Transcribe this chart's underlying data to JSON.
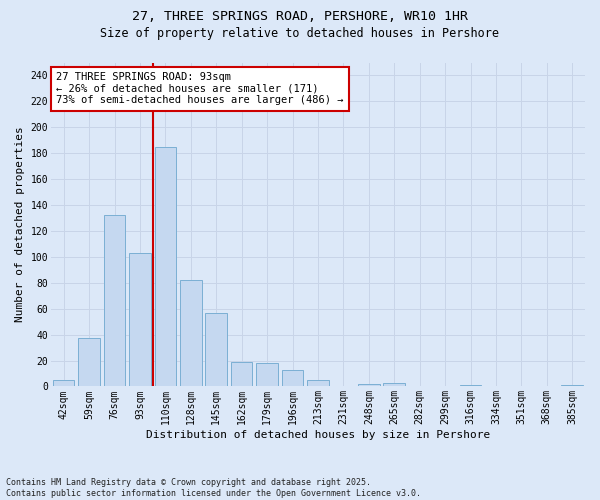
{
  "title_line1": "27, THREE SPRINGS ROAD, PERSHORE, WR10 1HR",
  "title_line2": "Size of property relative to detached houses in Pershore",
  "xlabel": "Distribution of detached houses by size in Pershore",
  "ylabel": "Number of detached properties",
  "categories": [
    "42sqm",
    "59sqm",
    "76sqm",
    "93sqm",
    "110sqm",
    "128sqm",
    "145sqm",
    "162sqm",
    "179sqm",
    "196sqm",
    "213sqm",
    "231sqm",
    "248sqm",
    "265sqm",
    "282sqm",
    "299sqm",
    "316sqm",
    "334sqm",
    "351sqm",
    "368sqm",
    "385sqm"
  ],
  "values": [
    5,
    37,
    132,
    103,
    185,
    82,
    57,
    19,
    18,
    13,
    5,
    0,
    2,
    3,
    0,
    0,
    1,
    0,
    0,
    0,
    1
  ],
  "bar_color": "#c5d8f0",
  "bar_edge_color": "#7bafd4",
  "vline_index": 3,
  "vline_color": "#cc0000",
  "annotation_text": "27 THREE SPRINGS ROAD: 93sqm\n← 26% of detached houses are smaller (171)\n73% of semi-detached houses are larger (486) →",
  "annotation_box_color": "#ffffff",
  "annotation_box_edge": "#cc0000",
  "annotation_fontsize": 7.5,
  "grid_color": "#c8d4e8",
  "background_color": "#dce8f8",
  "plot_bg_color": "#dce8f8",
  "ylim": [
    0,
    250
  ],
  "yticks": [
    0,
    20,
    40,
    60,
    80,
    100,
    120,
    140,
    160,
    180,
    200,
    220,
    240
  ],
  "footnote": "Contains HM Land Registry data © Crown copyright and database right 2025.\nContains public sector information licensed under the Open Government Licence v3.0.",
  "title_fontsize": 9.5,
  "subtitle_fontsize": 8.5,
  "xlabel_fontsize": 8,
  "ylabel_fontsize": 8,
  "tick_fontsize": 7
}
